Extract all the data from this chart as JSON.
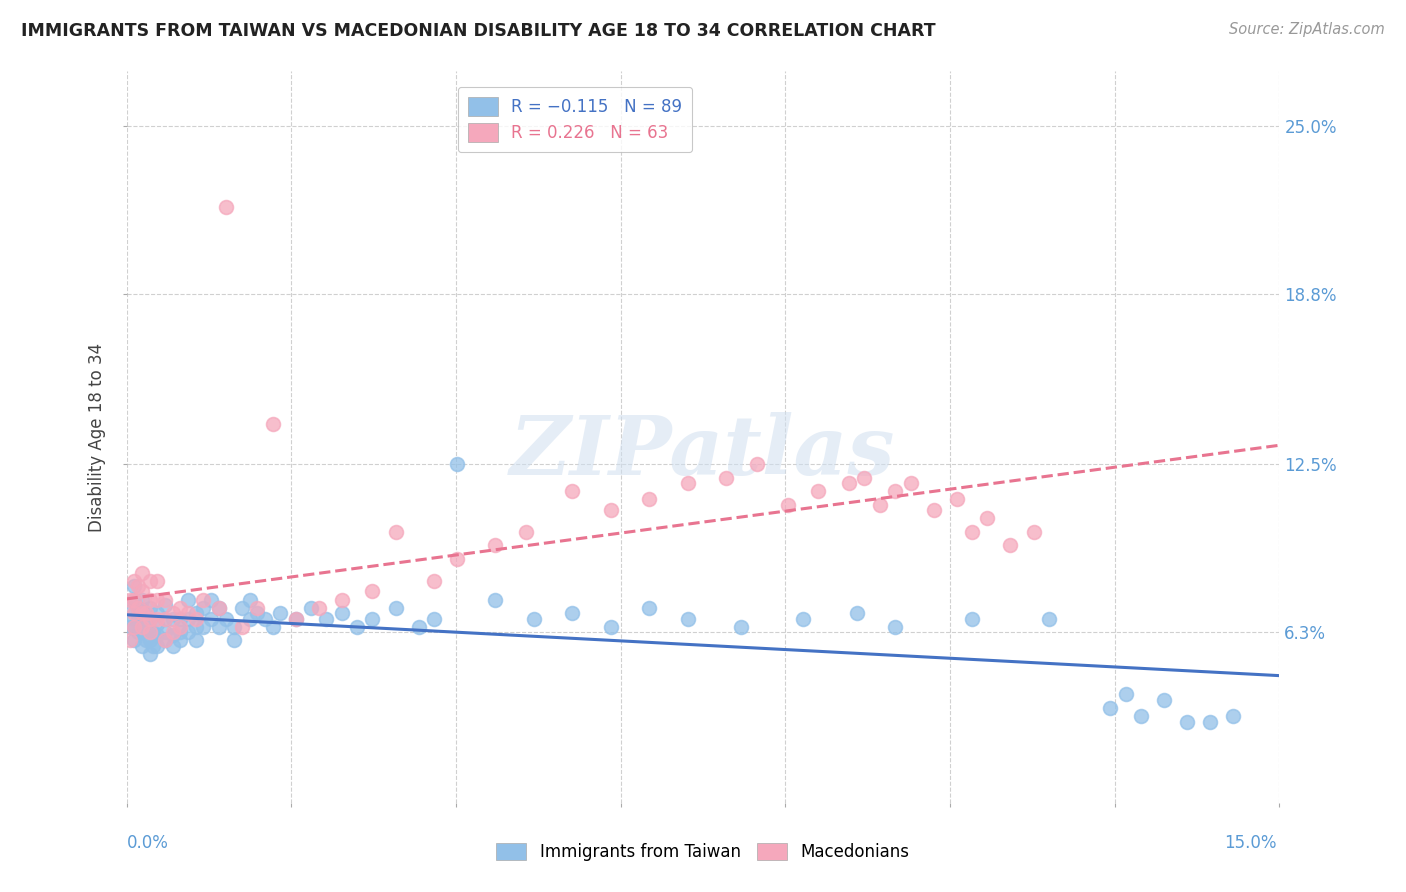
{
  "title": "IMMIGRANTS FROM TAIWAN VS MACEDONIAN DISABILITY AGE 18 TO 34 CORRELATION CHART",
  "source": "Source: ZipAtlas.com",
  "ylabel": "Disability Age 18 to 34",
  "ytick_values": [
    0.063,
    0.125,
    0.188,
    0.25
  ],
  "ytick_labels": [
    "6.3%",
    "12.5%",
    "18.8%",
    "25.0%"
  ],
  "xmin": 0.0,
  "xmax": 0.15,
  "ymin": 0.0,
  "ymax": 0.27,
  "watermark_text": "ZIPatlas",
  "taiwan_color": "#92C0E8",
  "macedonian_color": "#F5A8BC",
  "taiwan_line_color": "#4472C4",
  "macedonian_line_color": "#E87490",
  "taiwan_R": -0.115,
  "taiwan_N": 89,
  "macedonian_R": 0.226,
  "macedonian_N": 63,
  "taiwan_scatter_x": [
    0.0005,
    0.0005,
    0.001,
    0.001,
    0.001,
    0.001,
    0.001,
    0.0015,
    0.0015,
    0.0015,
    0.002,
    0.002,
    0.002,
    0.002,
    0.002,
    0.0025,
    0.0025,
    0.003,
    0.003,
    0.003,
    0.003,
    0.003,
    0.0035,
    0.0035,
    0.004,
    0.004,
    0.004,
    0.004,
    0.005,
    0.005,
    0.005,
    0.005,
    0.006,
    0.006,
    0.006,
    0.007,
    0.007,
    0.007,
    0.008,
    0.008,
    0.008,
    0.009,
    0.009,
    0.009,
    0.01,
    0.01,
    0.011,
    0.011,
    0.012,
    0.012,
    0.013,
    0.014,
    0.014,
    0.015,
    0.016,
    0.016,
    0.017,
    0.018,
    0.019,
    0.02,
    0.022,
    0.024,
    0.026,
    0.028,
    0.03,
    0.032,
    0.035,
    0.038,
    0.04,
    0.043,
    0.048,
    0.053,
    0.058,
    0.063,
    0.068,
    0.073,
    0.08,
    0.088,
    0.095,
    0.1,
    0.11,
    0.12,
    0.128,
    0.13,
    0.132,
    0.135,
    0.138,
    0.141,
    0.144
  ],
  "taiwan_scatter_y": [
    0.065,
    0.072,
    0.06,
    0.065,
    0.068,
    0.075,
    0.08,
    0.063,
    0.068,
    0.072,
    0.058,
    0.063,
    0.067,
    0.071,
    0.075,
    0.06,
    0.065,
    0.055,
    0.06,
    0.063,
    0.068,
    0.072,
    0.058,
    0.063,
    0.058,
    0.062,
    0.066,
    0.07,
    0.06,
    0.063,
    0.068,
    0.073,
    0.058,
    0.062,
    0.068,
    0.06,
    0.063,
    0.068,
    0.063,
    0.068,
    0.075,
    0.06,
    0.065,
    0.07,
    0.065,
    0.072,
    0.068,
    0.075,
    0.065,
    0.072,
    0.068,
    0.06,
    0.065,
    0.072,
    0.068,
    0.075,
    0.07,
    0.068,
    0.065,
    0.07,
    0.068,
    0.072,
    0.068,
    0.07,
    0.065,
    0.068,
    0.072,
    0.065,
    0.068,
    0.125,
    0.075,
    0.068,
    0.07,
    0.065,
    0.072,
    0.068,
    0.065,
    0.068,
    0.07,
    0.065,
    0.068,
    0.068,
    0.035,
    0.04,
    0.032,
    0.038,
    0.03,
    0.03,
    0.032
  ],
  "macedonian_scatter_x": [
    0.0005,
    0.0005,
    0.001,
    0.001,
    0.001,
    0.001,
    0.0015,
    0.0015,
    0.002,
    0.002,
    0.002,
    0.002,
    0.0025,
    0.003,
    0.003,
    0.003,
    0.003,
    0.004,
    0.004,
    0.004,
    0.005,
    0.005,
    0.005,
    0.006,
    0.006,
    0.007,
    0.007,
    0.008,
    0.009,
    0.01,
    0.012,
    0.013,
    0.015,
    0.017,
    0.019,
    0.022,
    0.025,
    0.028,
    0.032,
    0.035,
    0.04,
    0.043,
    0.048,
    0.052,
    0.058,
    0.063,
    0.068,
    0.073,
    0.078,
    0.082,
    0.086,
    0.09,
    0.094,
    0.096,
    0.098,
    0.1,
    0.102,
    0.105,
    0.108,
    0.11,
    0.112,
    0.115,
    0.118
  ],
  "macedonian_scatter_y": [
    0.06,
    0.075,
    0.065,
    0.07,
    0.075,
    0.082,
    0.072,
    0.08,
    0.065,
    0.07,
    0.078,
    0.085,
    0.07,
    0.063,
    0.068,
    0.075,
    0.082,
    0.068,
    0.075,
    0.082,
    0.06,
    0.068,
    0.075,
    0.063,
    0.07,
    0.065,
    0.072,
    0.07,
    0.068,
    0.075,
    0.072,
    0.22,
    0.065,
    0.072,
    0.14,
    0.068,
    0.072,
    0.075,
    0.078,
    0.1,
    0.082,
    0.09,
    0.095,
    0.1,
    0.115,
    0.108,
    0.112,
    0.118,
    0.12,
    0.125,
    0.11,
    0.115,
    0.118,
    0.12,
    0.11,
    0.115,
    0.118,
    0.108,
    0.112,
    0.1,
    0.105,
    0.095,
    0.1
  ]
}
